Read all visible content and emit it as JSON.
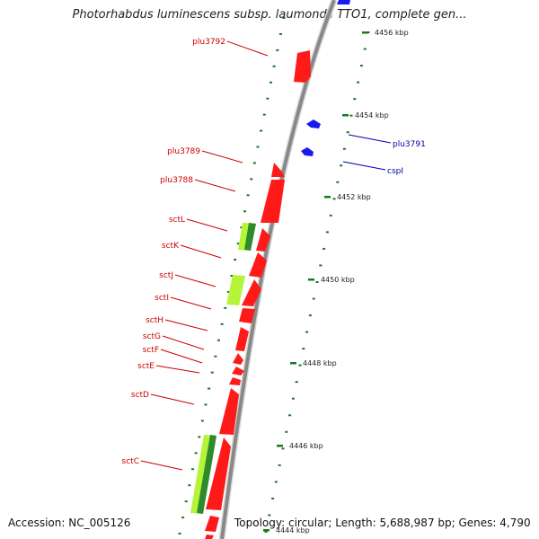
{
  "title": "Photorhabdus luminescens subsp. laumondii TTO1, complete gen...",
  "accession": "Accession: NC_005126",
  "summary": "Topology: circular; Length: 5,688,987 bp; Genes: 4,790",
  "colors": {
    "forward_gene": "#ff1a1a",
    "reverse_gene": "#1a1aee",
    "gc_light": "#b6f43a",
    "gc_dark": "#2d8a2d",
    "backbone": "#888888",
    "tick": "#1a7a1a",
    "forward_label": "#cc0000",
    "reverse_label": "#0000aa"
  },
  "chart_data": {
    "type": "genome-map",
    "scale_ticks_kbp": [
      "4456 kbp",
      "4454 kbp",
      "4452 kbp",
      "4450 kbp",
      "4448 kbp",
      "4446 kbp",
      "4444 kbp"
    ],
    "forward_genes": [
      "plu3792",
      "plu3789",
      "plu3788",
      "sctL",
      "sctK",
      "sctJ",
      "sctI",
      "sctH",
      "sctG",
      "sctF",
      "sctE",
      "sctD",
      "sctC"
    ],
    "reverse_genes": [
      "plu3791",
      "cspI"
    ]
  }
}
